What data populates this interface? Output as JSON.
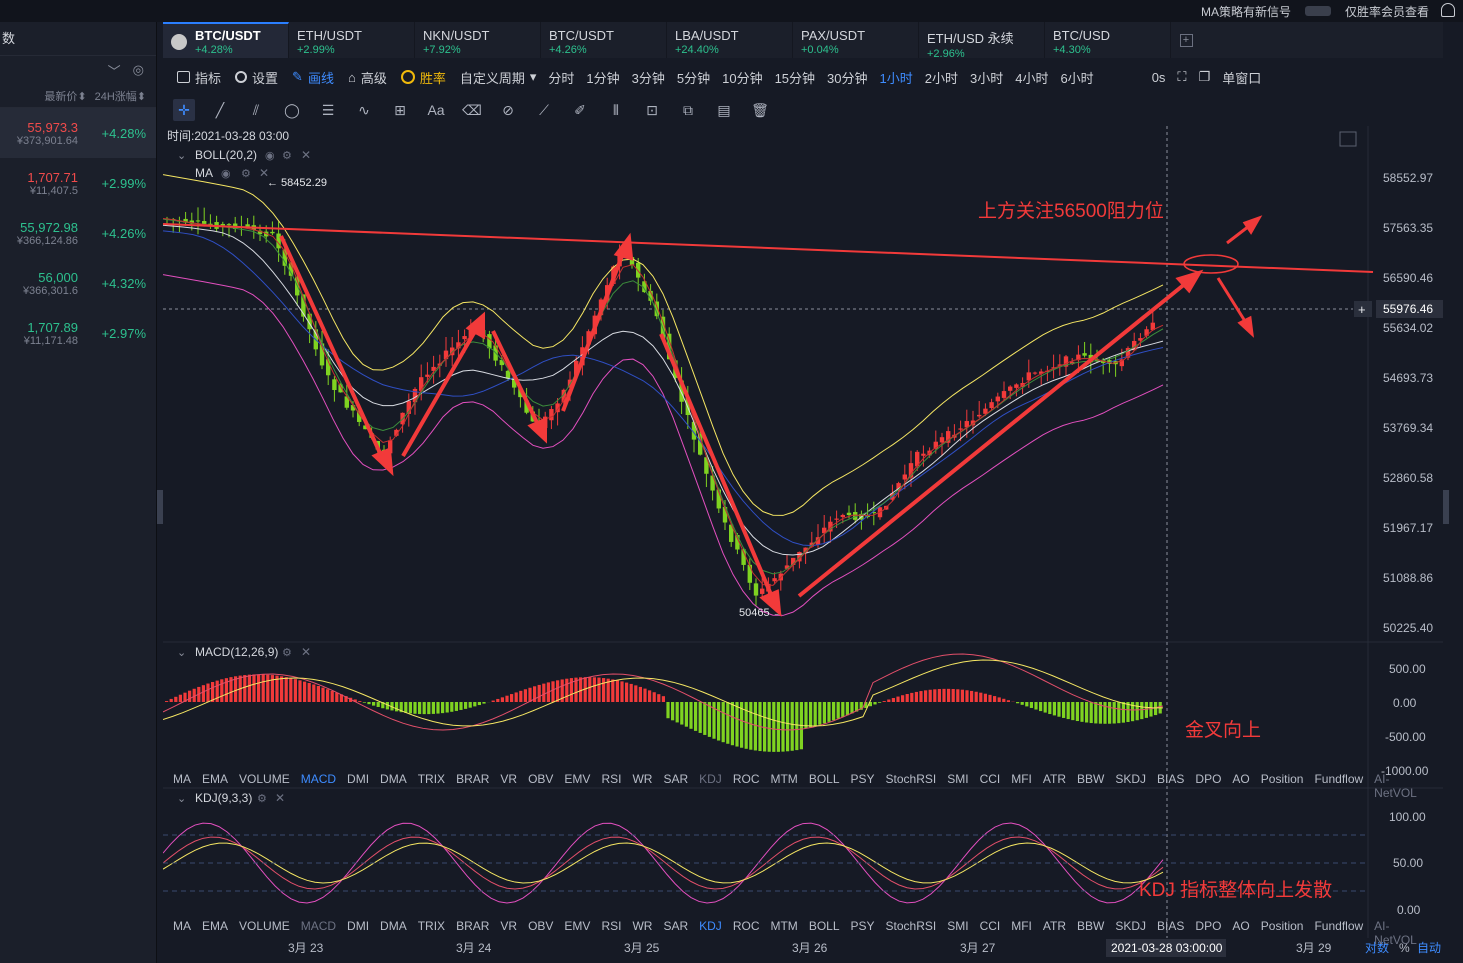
{
  "topbar": {
    "signal": "MA策略有新信号",
    "vip_note": "仅胜率会员查看"
  },
  "left_panel": {
    "title": "数",
    "col_price": "最新价",
    "col_change": "24H涨幅",
    "rows": [
      {
        "price": "55,973.3",
        "cny": "¥373,901.64",
        "change": "+4.28%",
        "color": "#f04b4b"
      },
      {
        "price": "1,707.71",
        "cny": "¥11,407.5",
        "change": "+2.99%",
        "color": "#f04b4b"
      },
      {
        "price": "55,972.98",
        "cny": "¥366,124.86",
        "change": "+4.26%",
        "color": "#2dc08e"
      },
      {
        "price": "56,000",
        "cny": "¥366,301.6",
        "change": "+4.32%",
        "color": "#2dc08e"
      },
      {
        "price": "1,707.89",
        "cny": "¥11,171.48",
        "change": "+2.97%",
        "color": "#2dc08e"
      }
    ]
  },
  "tabs": [
    {
      "name": "BTC/USDT",
      "change": "+4.28%"
    },
    {
      "name": "ETH/USDT",
      "change": "+2.99%"
    },
    {
      "name": "NKN/USDT",
      "change": "+7.92%"
    },
    {
      "name": "BTC/USDT",
      "change": "+4.26%"
    },
    {
      "name": "LBA/USDT",
      "change": "+24.40%"
    },
    {
      "name": "PAX/USDT",
      "change": "+0.04%"
    },
    {
      "name": "ETH/USD 永续",
      "change": "+2.96%"
    },
    {
      "name": "BTC/USD",
      "change": "+4.30%"
    }
  ],
  "toolbar": {
    "indicator": "指标",
    "settings": "设置",
    "draw": "画线",
    "advanced": "高级",
    "winrate": "胜率",
    "custom_period": "自定义周期",
    "periods": [
      "分时",
      "1分钟",
      "3分钟",
      "5分钟",
      "10分钟",
      "15分钟",
      "30分钟",
      "1小时",
      "2小时",
      "3小时",
      "4小时",
      "6小时"
    ],
    "active_period": "1小时",
    "seconds": "0s",
    "window": "单窗口"
  },
  "chart": {
    "time_label": "时间:2021-03-28 03:00",
    "boll_label": "BOLL(20,2)",
    "ma_label": "MA",
    "high_marker": "← 58452.29",
    "low_marker": "50465 →",
    "price_axis": [
      "58552.97",
      "57563.35",
      "56590.46",
      "55634.02",
      "54693.73",
      "53769.34",
      "52860.58",
      "51967.17",
      "51088.86",
      "50225.40"
    ],
    "current_price": "55976.46",
    "annotation_resistance": "上方关注56500阻力位",
    "macd_label": "MACD(12,26,9)",
    "macd_axis": [
      "500.00",
      "0.00",
      "-500.00",
      "-1000.00"
    ],
    "macd_annotation": "金叉向上",
    "kdj_label": "KDJ(9,3,3)",
    "kdj_axis": [
      "100.00",
      "50.00",
      "0.00"
    ],
    "kdj_annotation": "KDJ 指标整体向上发散",
    "indicator_tabs": [
      "MA",
      "EMA",
      "VOLUME",
      "MACD",
      "DMI",
      "DMA",
      "TRIX",
      "BRAR",
      "VR",
      "OBV",
      "EMV",
      "RSI",
      "WR",
      "SAR",
      "KDJ",
      "ROC",
      "MTM",
      "BOLL",
      "PSY",
      "StochRSI",
      "SMI",
      "CCI",
      "MFI",
      "ATR",
      "BBW",
      "SKDJ",
      "BIAS",
      "DPO",
      "AO",
      "Position",
      "Fundflow",
      "AI-NetVOL"
    ],
    "date_axis": [
      "3月 23",
      "3月 24",
      "3月 25",
      "3月 26",
      "3月 27",
      "2021-03-28 03:00:00",
      "3月 29"
    ],
    "footer": {
      "log": "对数",
      "percent": "%",
      "auto": "自动"
    }
  }
}
